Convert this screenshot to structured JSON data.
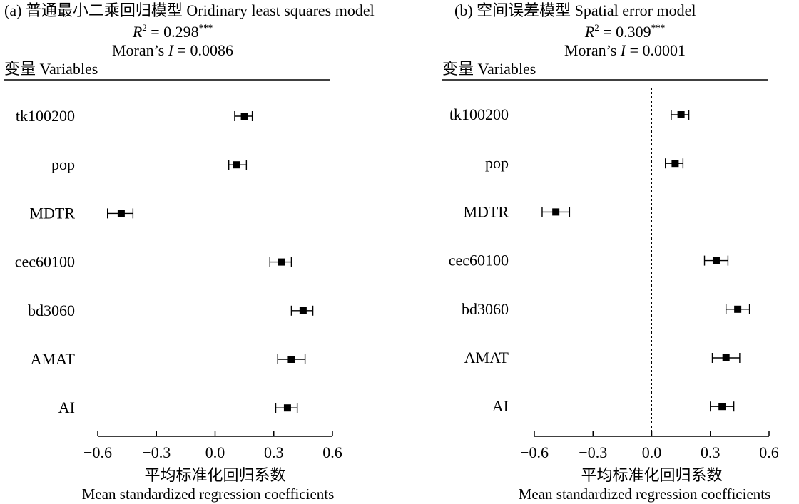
{
  "chart_data": [
    {
      "type": "scatter",
      "title": "(a) 普通最小二乘回归模型  Oridinary least squares model",
      "r2_label": "R",
      "r2_sup": "2",
      "r2_value": " = 0.298",
      "r2_stars": "***",
      "moran_prefix": "Moran’s ",
      "moran_italic": "I",
      "moran_value": " = 0.0086",
      "variables_header": "变量 Variables",
      "xlabel_cn": "平均标准化回归系数",
      "xlabel_en": "Mean standardized regression coefficients",
      "xlim": [
        -0.6,
        0.6
      ],
      "x_ticks": [
        -0.6,
        -0.3,
        0.0,
        0.3,
        0.6
      ],
      "x_tick_labels": [
        "−0.6",
        "−0.3",
        "0.0",
        "0.3",
        "0.6"
      ],
      "reference_line": 0,
      "categories": [
        "tk100200",
        "pop",
        "MDTR",
        "cec60100",
        "bd3060",
        "AMAT",
        "AI"
      ],
      "values": [
        0.15,
        0.11,
        -0.48,
        0.34,
        0.45,
        0.39,
        0.37
      ],
      "ci_low": [
        0.1,
        0.07,
        -0.55,
        0.28,
        0.39,
        0.32,
        0.31
      ],
      "ci_high": [
        0.19,
        0.16,
        -0.42,
        0.39,
        0.5,
        0.46,
        0.42
      ]
    },
    {
      "type": "scatter",
      "title": "(b) 空间误差模型 Spatial error model",
      "r2_label": "R",
      "r2_sup": "2",
      "r2_value": " = 0.309",
      "r2_stars": "***",
      "moran_prefix": "Moran’s ",
      "moran_italic": "I",
      "moran_value": " = 0.0001",
      "variables_header": "变量 Variables",
      "xlabel_cn": "平均标准化回归系数",
      "xlabel_en": "Mean standardized regression coefficients",
      "xlim": [
        -0.6,
        0.6
      ],
      "x_ticks": [
        -0.6,
        -0.3,
        0.0,
        0.3,
        0.6
      ],
      "x_tick_labels": [
        "−0.6",
        "−0.3",
        "0.0",
        "0.3",
        "0.6"
      ],
      "reference_line": 0,
      "categories": [
        "tk100200",
        "pop",
        "MDTR",
        "cec60100",
        "bd3060",
        "AMAT",
        "AI"
      ],
      "values": [
        0.15,
        0.12,
        -0.49,
        0.33,
        0.44,
        0.38,
        0.36
      ],
      "ci_low": [
        0.1,
        0.07,
        -0.56,
        0.27,
        0.38,
        0.31,
        0.3
      ],
      "ci_high": [
        0.19,
        0.16,
        -0.42,
        0.39,
        0.5,
        0.45,
        0.42
      ]
    }
  ]
}
